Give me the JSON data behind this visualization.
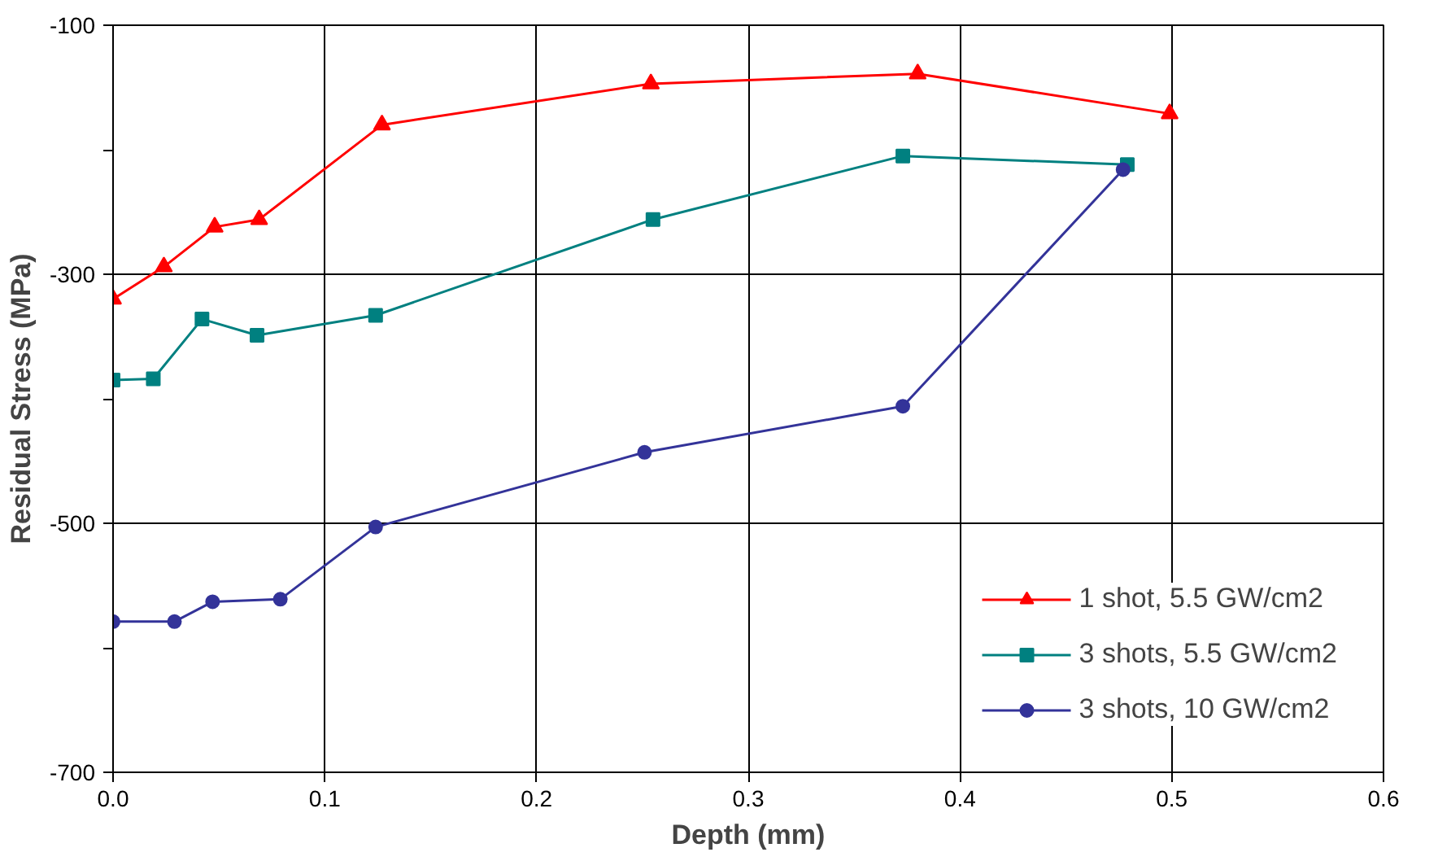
{
  "chart_data": {
    "type": "line",
    "xlabel": "Depth (mm)",
    "ylabel": "Residual Stress (MPa)",
    "xlim": [
      0,
      0.6
    ],
    "xticks": [
      {
        "value": 0,
        "label": "0.0"
      },
      0.1,
      0.2,
      0.3,
      0.4,
      0.5,
      0.6
    ],
    "ylim": [
      -700,
      -100
    ],
    "yticks": [
      -700,
      {
        "value": -600,
        "label": null
      },
      -500,
      {
        "value": -400,
        "label": null
      },
      -300,
      {
        "value": -200,
        "label": null
      },
      -100
    ],
    "grid": true,
    "legend": "bottom right",
    "line_style": "solid",
    "series": [
      {
        "name": "1 shot, 5.5 GW/cm2",
        "color": "#ff0000",
        "marker": "triangle",
        "x": [
          0,
          0.024,
          0.048,
          0.069,
          0.127,
          0.254,
          0.38,
          0.499
        ],
        "values": [
          -320,
          -294,
          -262,
          -256,
          -180,
          -147,
          -139,
          -171
        ]
      },
      {
        "name": "3 shots, 5.5 GW/cm2",
        "color": "#008080",
        "marker": "square",
        "x": [
          0,
          0.019,
          0.042,
          0.068,
          0.124,
          0.255,
          0.373,
          0.479
        ],
        "values": [
          -385,
          -384,
          -336,
          -349,
          -333,
          -256,
          -205,
          -212
        ]
      },
      {
        "name": "3 shots, 10 GW/cm2",
        "color": "#333399",
        "marker": "circle",
        "x": [
          0,
          0.029,
          0.047,
          0.079,
          0.124,
          0.251,
          0.373,
          0.477
        ],
        "values": [
          -579,
          -579,
          -563,
          -561,
          -503,
          -443,
          -406,
          -216
        ]
      }
    ]
  }
}
